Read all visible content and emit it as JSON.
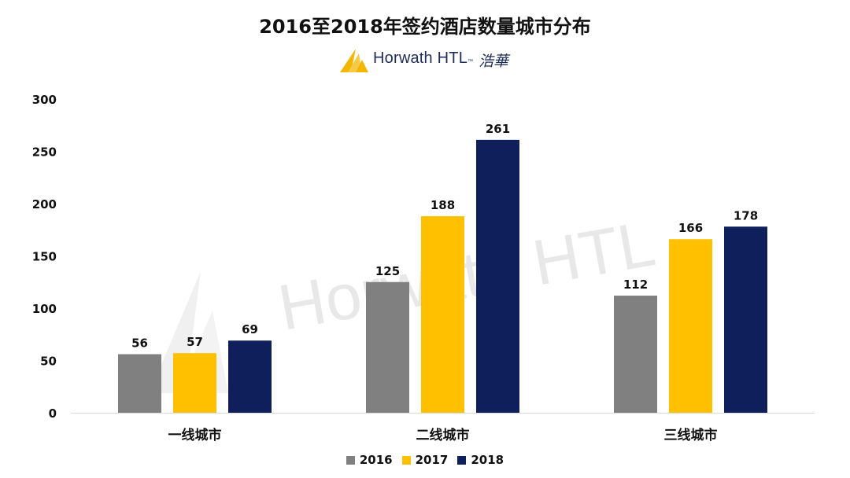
{
  "chart_data": {
    "type": "bar",
    "title": "2016至2018年签约酒店数量城市分布",
    "categories": [
      "一线城市",
      "二线城市",
      "三线城市"
    ],
    "series": [
      {
        "name": "2016",
        "values": [
          56,
          125,
          112
        ],
        "color": "#808080"
      },
      {
        "name": "2017",
        "values": [
          57,
          188,
          166
        ],
        "color": "#FFC000"
      },
      {
        "name": "2018",
        "values": [
          69,
          261,
          178
        ],
        "color": "#0E1F5B"
      }
    ],
    "ylim": [
      0,
      300
    ],
    "yticks": [
      "0",
      "50",
      "100",
      "150",
      "200",
      "250",
      "300"
    ],
    "xlabel": "",
    "ylabel": "",
    "grid": false,
    "legend_position": "bottom",
    "data_labels": true
  },
  "brand": {
    "name": "Horwath HTL",
    "trademark": "™",
    "chinese": "浩華",
    "watermark": "Horwath HTL",
    "logo_color": "#F2B705",
    "text_color": "#1F2D5A"
  }
}
